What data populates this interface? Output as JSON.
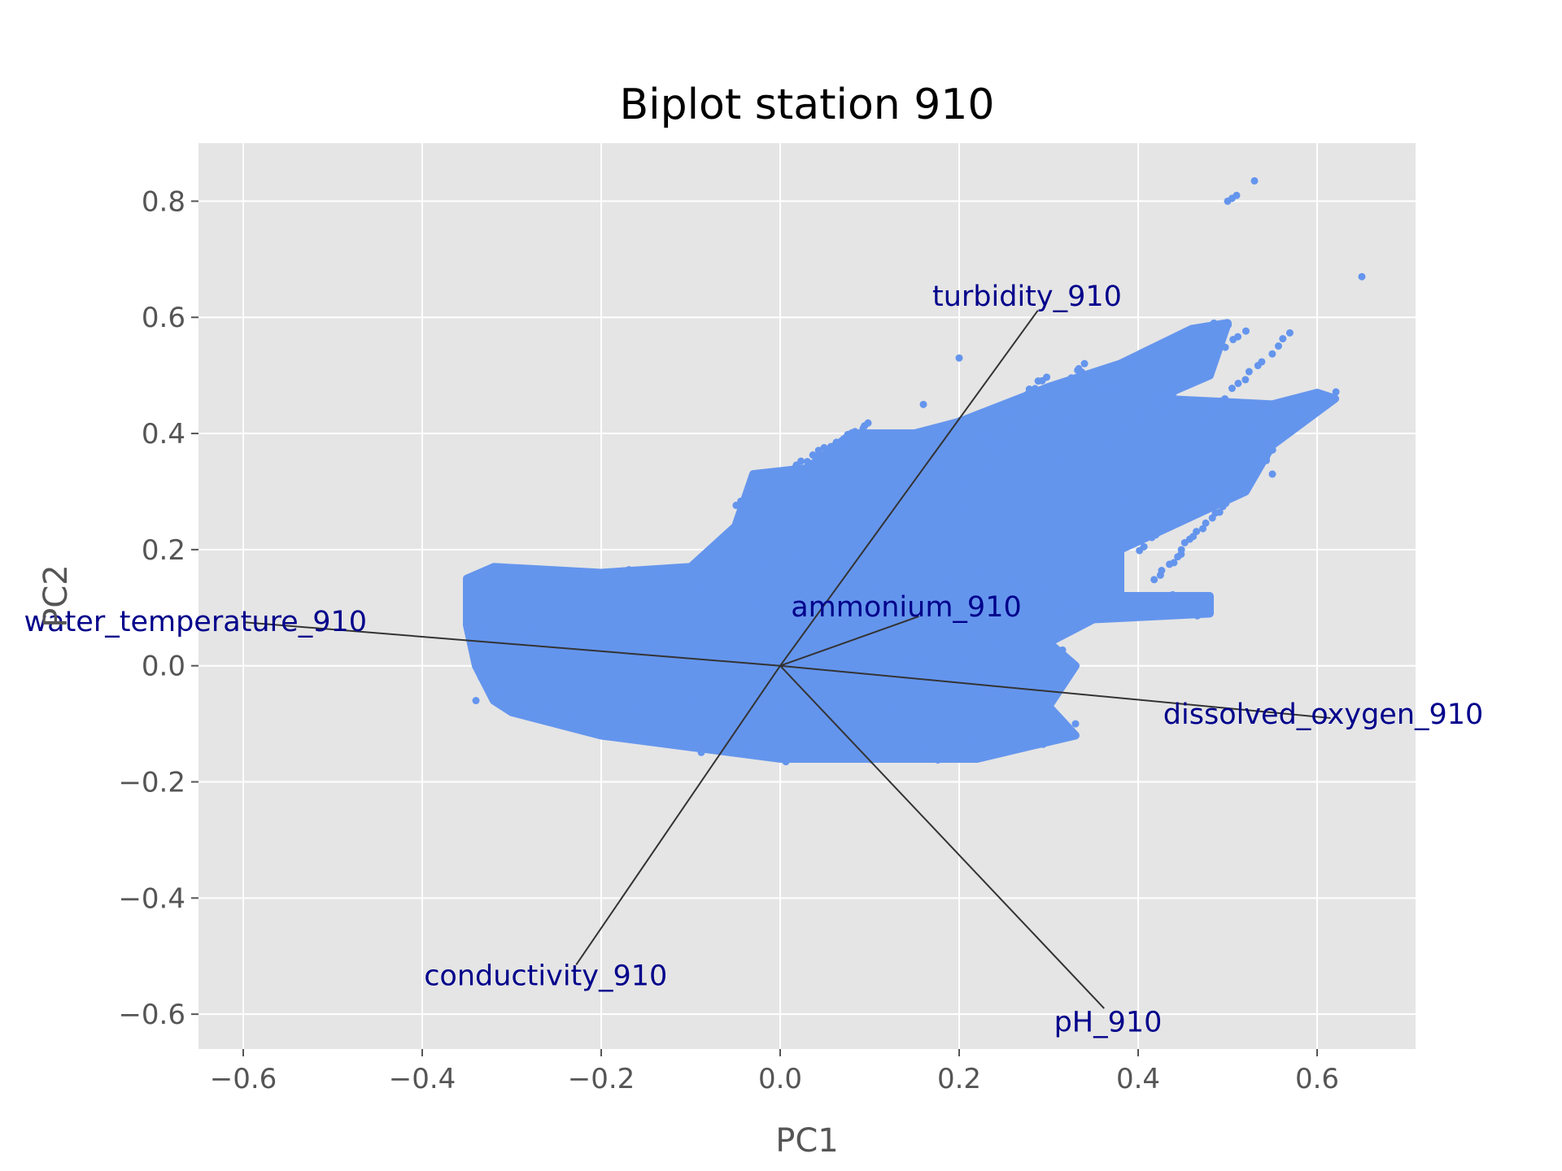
{
  "chart_data": {
    "type": "scatter",
    "title": "Biplot station 910",
    "xlabel": "PC1",
    "ylabel": "PC2",
    "xlim": [
      -0.65,
      0.71
    ],
    "ylim": [
      -0.66,
      0.9
    ],
    "xticks": [
      -0.6,
      -0.4,
      -0.2,
      0.0,
      0.2,
      0.4,
      0.6
    ],
    "yticks": [
      -0.6,
      -0.4,
      -0.2,
      0.0,
      0.2,
      0.4,
      0.6,
      0.8
    ],
    "xtick_labels": [
      "−0.6",
      "−0.4",
      "−0.2",
      "0.0",
      "0.2",
      "0.4",
      "0.6"
    ],
    "ytick_labels": [
      "−0.6",
      "−0.4",
      "−0.2",
      "0.0",
      "0.2",
      "0.4",
      "0.6",
      "0.8"
    ],
    "grid": true,
    "point_color": "#6495ed",
    "arrow_color": "#333333",
    "label_color": "#00008b",
    "panel_color": "#e5e5e5",
    "score_cloud_outline": [
      [
        -0.35,
        0.15
      ],
      [
        -0.32,
        0.17
      ],
      [
        -0.2,
        0.16
      ],
      [
        -0.1,
        0.17
      ],
      [
        -0.05,
        0.24
      ],
      [
        -0.03,
        0.33
      ],
      [
        0.03,
        0.34
      ],
      [
        0.08,
        0.4
      ],
      [
        0.15,
        0.4
      ],
      [
        0.2,
        0.42
      ],
      [
        0.3,
        0.48
      ],
      [
        0.38,
        0.52
      ],
      [
        0.46,
        0.58
      ],
      [
        0.5,
        0.59
      ],
      [
        0.48,
        0.5
      ],
      [
        0.42,
        0.46
      ],
      [
        0.55,
        0.45
      ],
      [
        0.6,
        0.47
      ],
      [
        0.62,
        0.46
      ],
      [
        0.55,
        0.38
      ],
      [
        0.52,
        0.3
      ],
      [
        0.45,
        0.25
      ],
      [
        0.38,
        0.2
      ],
      [
        0.38,
        0.12
      ],
      [
        0.48,
        0.12
      ],
      [
        0.48,
        0.09
      ],
      [
        0.35,
        0.08
      ],
      [
        0.3,
        0.04
      ],
      [
        0.33,
        0.0
      ],
      [
        0.3,
        -0.07
      ],
      [
        0.33,
        -0.12
      ],
      [
        0.22,
        -0.16
      ],
      [
        0.1,
        -0.16
      ],
      [
        0.0,
        -0.16
      ],
      [
        -0.1,
        -0.14
      ],
      [
        -0.2,
        -0.12
      ],
      [
        -0.3,
        -0.08
      ],
      [
        -0.32,
        -0.06
      ],
      [
        -0.34,
        0.0
      ],
      [
        -0.35,
        0.07
      ]
    ],
    "streaks": [
      {
        "from": [
          0.25,
          0.35
        ],
        "to": [
          0.5,
          0.59
        ]
      },
      {
        "from": [
          0.3,
          0.3
        ],
        "to": [
          0.52,
          0.58
        ]
      },
      {
        "from": [
          0.35,
          0.25
        ],
        "to": [
          0.57,
          0.57
        ]
      },
      {
        "from": [
          0.4,
          0.2
        ],
        "to": [
          0.62,
          0.47
        ]
      },
      {
        "from": [
          0.2,
          0.3
        ],
        "to": [
          0.34,
          0.52
        ]
      },
      {
        "from": [
          0.15,
          0.3
        ],
        "to": [
          0.3,
          0.5
        ]
      },
      {
        "from": [
          -0.05,
          0.28
        ],
        "to": [
          0.1,
          0.42
        ]
      },
      {
        "from": [
          0.42,
          0.15
        ],
        "to": [
          0.55,
          0.37
        ]
      }
    ],
    "outliers": [
      [
        0.5,
        0.8
      ],
      [
        0.51,
        0.81
      ],
      [
        0.505,
        0.805
      ],
      [
        0.53,
        0.835
      ],
      [
        0.65,
        0.67
      ],
      [
        0.2,
        0.53
      ],
      [
        0.16,
        0.45
      ],
      [
        0.12,
        0.4
      ],
      [
        0.5,
        0.35
      ],
      [
        0.55,
        0.33
      ],
      [
        0.45,
        0.4
      ],
      [
        0.47,
        0.34
      ],
      [
        -0.35,
        0.1
      ],
      [
        -0.34,
        -0.06
      ],
      [
        0.33,
        -0.1
      ]
    ],
    "loadings": [
      {
        "name": "turbidity_910",
        "x": 0.288,
        "y": 0.612,
        "label_pos": [
          0.17,
          0.62
        ]
      },
      {
        "name": "ammonium_910",
        "x": 0.155,
        "y": 0.085,
        "label_pos": [
          0.012,
          0.085
        ]
      },
      {
        "name": "water_temperature_910",
        "x": -0.6,
        "y": 0.075,
        "label_pos": [
          -0.845,
          0.06
        ]
      },
      {
        "name": "dissolved_oxygen_910",
        "x": 0.615,
        "y": -0.09,
        "label_pos": [
          0.428,
          -0.1
        ]
      },
      {
        "name": "conductivity_910",
        "x": -0.228,
        "y": -0.515,
        "label_pos": [
          -0.398,
          -0.55
        ]
      },
      {
        "name": "pH_910",
        "x": 0.362,
        "y": -0.59,
        "label_pos": [
          0.306,
          -0.63
        ]
      }
    ]
  }
}
